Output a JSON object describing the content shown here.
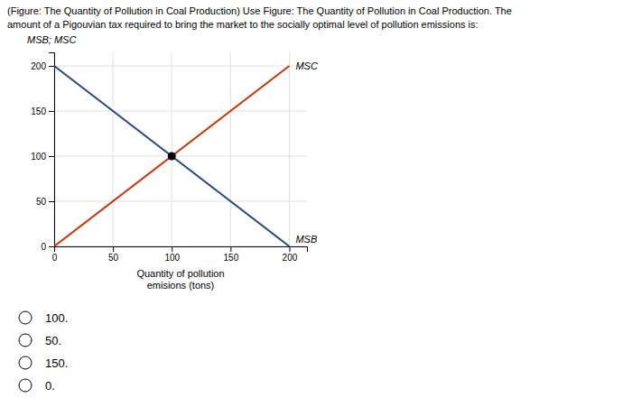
{
  "chart_data": {
    "type": "line",
    "title": "(Figure: The Quantity of Pollution in Coal Production) Use Figure: The Quantity of Pollution in Coal Production. The",
    "subtitle": "amount of a Pigouvian tax required to bring the market to the socially optimal level of pollution emissions is:",
    "x_label": "Quantity of pollution\nemisions (tons)",
    "y_label": "MSB; MSC",
    "series": [
      {
        "name": "MSB",
        "color": "#2c4580",
        "x": [
          0,
          200
        ],
        "values": [
          200,
          0
        ]
      },
      {
        "name": "MSC",
        "color": "#cc3300",
        "x": [
          0,
          200
        ],
        "values": [
          0,
          200
        ]
      },
      {
        "type": "scatter",
        "marker": "circle",
        "color": "#000000",
        "x": [
          100
        ],
        "values": [
          100
        ]
      }
    ],
    "xlim": [
      0,
      215
    ],
    "ylim": [
      0,
      215
    ],
    "xticks": [
      0,
      50,
      100,
      150,
      200
    ],
    "yticks": [
      0,
      50,
      100,
      150,
      200
    ],
    "grid": true,
    "choices": [
      "100.",
      "50.",
      "150.",
      "0."
    ]
  }
}
